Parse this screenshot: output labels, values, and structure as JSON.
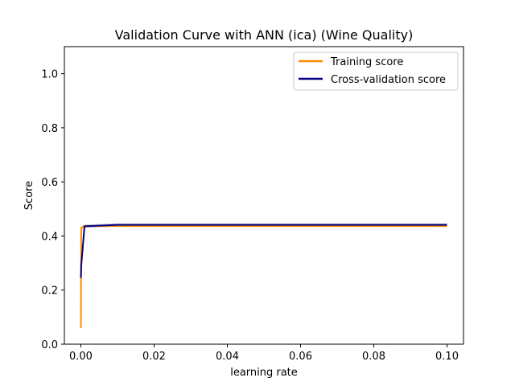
{
  "chart_data": {
    "type": "line",
    "title": "Validation Curve with ANN (ica) (Wine Quality)",
    "xlabel": "learning rate",
    "ylabel": "Score",
    "xlim": [
      -0.0045,
      0.1045
    ],
    "ylim": [
      0.0,
      1.1
    ],
    "xticks": [
      0.0,
      0.02,
      0.04,
      0.06,
      0.08,
      0.1
    ],
    "xtick_labels": [
      "0.00",
      "0.02",
      "0.04",
      "0.06",
      "0.08",
      "0.10"
    ],
    "yticks": [
      0.0,
      0.2,
      0.4,
      0.6,
      0.8,
      1.0
    ],
    "ytick_labels": [
      "0.0",
      "0.2",
      "0.4",
      "0.6",
      "0.8",
      "1.0"
    ],
    "legend_position": "top-right",
    "x": [
      1e-05,
      0.0001,
      0.001,
      0.01,
      0.1
    ],
    "series": [
      {
        "name": "Training score",
        "color": "#ff8c00",
        "values": [
          0.06,
          0.43,
          0.437,
          0.437,
          0.437
        ],
        "band_low": [
          0.05,
          0.41,
          0.432,
          0.432,
          0.432
        ],
        "band_high": [
          0.07,
          0.44,
          0.442,
          0.442,
          0.442
        ]
      },
      {
        "name": "Cross-validation score",
        "color": "#000080",
        "values": [
          0.245,
          0.29,
          0.436,
          0.441,
          0.441
        ],
        "band_low": [
          0.24,
          0.28,
          0.43,
          0.435,
          0.435
        ],
        "band_high": [
          0.25,
          0.3,
          0.442,
          0.447,
          0.447
        ]
      }
    ]
  }
}
